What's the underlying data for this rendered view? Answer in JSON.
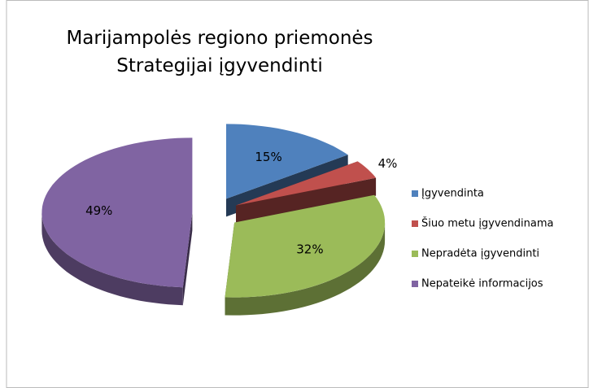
{
  "chart_data": {
    "type": "pie",
    "title": "Marijampolės regiono priemonės Strategijai įgyvendinti",
    "categories": [
      "Įgyvendinta",
      "Šiuo metu įgyvendinama",
      "Nepradėta įgyvendinti",
      "Nepateikė informacijos"
    ],
    "values": [
      15,
      4,
      32,
      49
    ],
    "value_labels": [
      "15%",
      "4%",
      "32%",
      "49%"
    ],
    "colors": [
      "#4f81bd",
      "#c0504d",
      "#9bbb59",
      "#8064a2"
    ],
    "legend": "right"
  }
}
